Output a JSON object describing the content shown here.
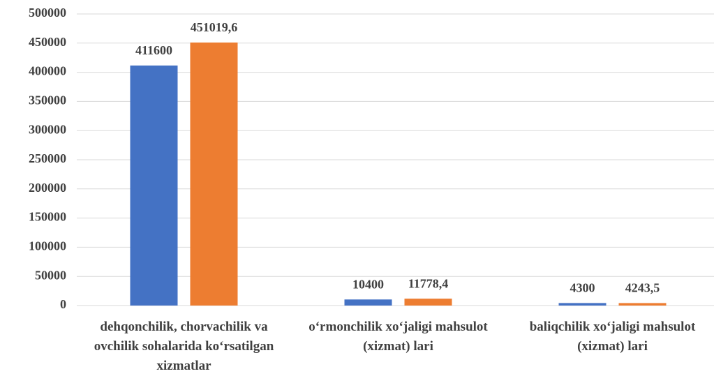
{
  "chart_data": {
    "type": "bar",
    "categories": [
      "dehqonchilik, chorvachilik va ovchilik sohalarida ko‘rsatilgan xizmatlar",
      "o‘rmonchilik xo‘jaligi mahsulot (xizmat) lari",
      "baliqchilik xo‘jaligi mahsulot (xizmat) lari"
    ],
    "series": [
      {
        "color": "#4472c4",
        "values": [
          411600,
          10400,
          4300
        ]
      },
      {
        "color": "#ed7d31",
        "values": [
          451019.6,
          11778.4,
          4243.5
        ],
        "value_labels": [
          "451019,6",
          "11778,4",
          "4243,5"
        ]
      }
    ],
    "ylim": [
      0,
      500000
    ],
    "yticks": [
      0,
      50000,
      100000,
      150000,
      200000,
      250000,
      300000,
      350000,
      400000,
      450000,
      500000
    ],
    "grid": true
  }
}
